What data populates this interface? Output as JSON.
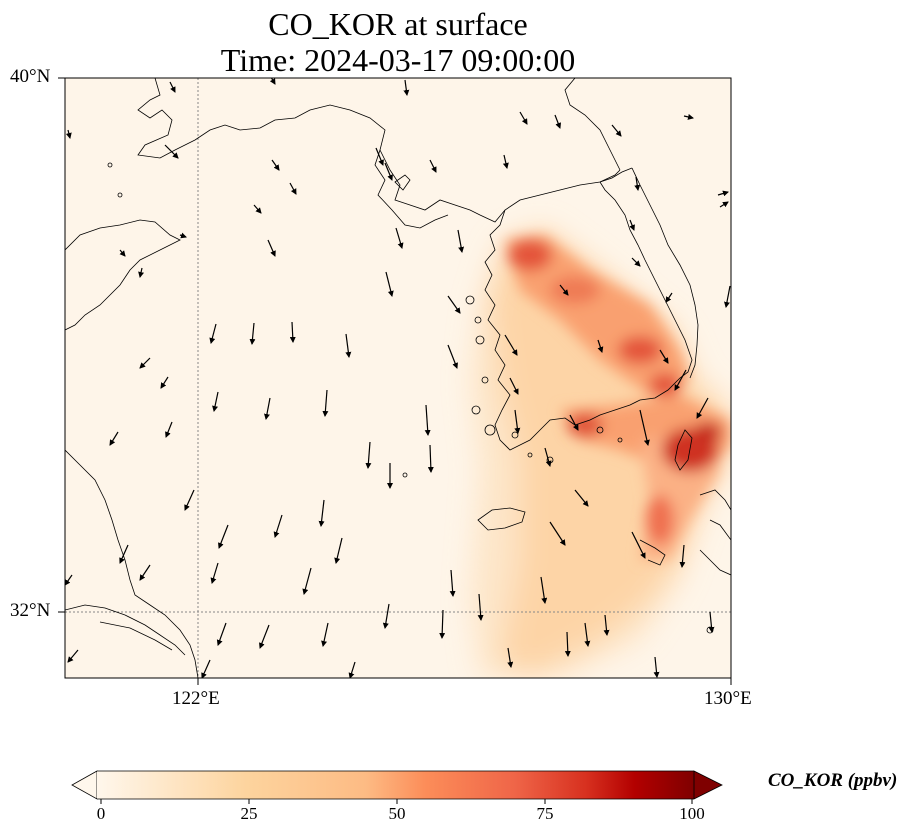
{
  "title": "CO_KOR at surface",
  "subtitle": "Time: 2024-03-17 09:00:00",
  "map": {
    "lon_range": [
      118.0,
      130.0
    ],
    "lat_range": [
      30.8,
      40.0
    ],
    "lat_ticks": [
      {
        "value": 40,
        "label": "40°N"
      },
      {
        "value": 32,
        "label": "32°N"
      }
    ],
    "lon_ticks": [
      {
        "value": 122,
        "label": "122°E"
      },
      {
        "value": 130,
        "label": "130°E"
      }
    ],
    "gridlines": "dotted gray at 122°E and 32°N",
    "land_color": "#fef5e9",
    "features": [
      "coastlines",
      "Jeju island",
      "Korean peninsula",
      "Shandong peninsula",
      "Liaodong peninsula"
    ]
  },
  "colorbar": {
    "label": "CO_KOR (ppbv)",
    "min": 0,
    "max": 100,
    "ticks": [
      "0",
      "25",
      "50",
      "75",
      "100"
    ],
    "colormap": "OrRd",
    "extend": "both"
  },
  "plumes": [
    {
      "lon": 125.8,
      "lat": 37.0,
      "value": 70
    },
    {
      "lon": 126.6,
      "lat": 36.7,
      "value": 62
    },
    {
      "lon": 127.3,
      "lat": 36.2,
      "value": 55
    },
    {
      "lon": 128.0,
      "lat": 35.6,
      "value": 68
    },
    {
      "lon": 127.0,
      "lat": 34.7,
      "value": 60
    },
    {
      "lon": 128.2,
      "lat": 34.4,
      "value": 68
    },
    {
      "lon": 129.3,
      "lat": 34.2,
      "value": 82
    },
    {
      "lon": 128.6,
      "lat": 33.4,
      "value": 58
    },
    {
      "lon": 128.9,
      "lat": 32.3,
      "value": 30
    }
  ],
  "wind_vectors": {
    "description": "surface wind arrows, predominantly southward to south-southeast"
  }
}
